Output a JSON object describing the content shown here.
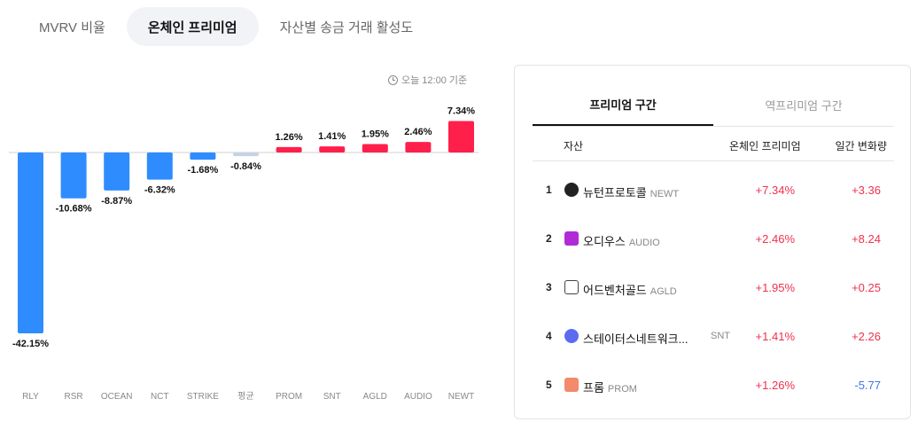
{
  "tabs": [
    {
      "label": "MVRV 비율",
      "active": false
    },
    {
      "label": "온체인 프리미엄",
      "active": true
    },
    {
      "label": "자산별 송금 거래 활성도",
      "active": false
    }
  ],
  "timestamp": "오늘 12:00 기준",
  "chart_data": {
    "type": "bar",
    "categories": [
      "RLY",
      "RSR",
      "OCEAN",
      "NCT",
      "STRIKE",
      "평균",
      "PROM",
      "SNT",
      "AGLD",
      "AUDIO",
      "NEWT"
    ],
    "values": [
      -42.15,
      -10.68,
      -8.87,
      -6.32,
      -1.68,
      -0.84,
      1.26,
      1.41,
      1.95,
      2.46,
      7.34
    ],
    "labels": [
      "-42.15%",
      "-10.68%",
      "-8.87%",
      "-6.32%",
      "-1.68%",
      "-0.84%",
      "1.26%",
      "1.41%",
      "1.95%",
      "2.46%",
      "7.34%"
    ],
    "colors": {
      "negative": "#2f8cff",
      "positive": "#ff1f4b",
      "average": "#c5d4e3"
    },
    "xlabel": "",
    "ylabel": ""
  },
  "panel": {
    "tabs": [
      {
        "label": "프리미엄 구간",
        "active": true
      },
      {
        "label": "역프리미엄 구간",
        "active": false
      }
    ],
    "headers": {
      "asset": "자산",
      "premium": "온체인 프리미엄",
      "change": "일간 변화량"
    },
    "rows": [
      {
        "rank": "1",
        "name": "뉴턴프로토콜",
        "symbol": "NEWT",
        "premium": "+7.34%",
        "change": "+3.36",
        "icon": "newton-icon",
        "color": "#222222"
      },
      {
        "rank": "2",
        "name": "오디우스",
        "symbol": "AUDIO",
        "premium": "+2.46%",
        "change": "+8.24",
        "icon": "audius-icon",
        "color": "#b02bd6"
      },
      {
        "rank": "3",
        "name": "어드벤처골드",
        "symbol": "AGLD",
        "premium": "+1.95%",
        "change": "+0.25",
        "icon": "adventure-gold-icon",
        "color": "#444444"
      },
      {
        "rank": "4",
        "name": "스테이터스네트워크...",
        "symbol": "SNT",
        "premium": "+1.41%",
        "change": "+2.26",
        "icon": "status-icon",
        "color": "#5b6cf0"
      },
      {
        "rank": "5",
        "name": "프롬",
        "symbol": "PROM",
        "premium": "+1.26%",
        "change": "-5.77",
        "icon": "prom-icon",
        "color": "#f28a6b"
      }
    ]
  }
}
